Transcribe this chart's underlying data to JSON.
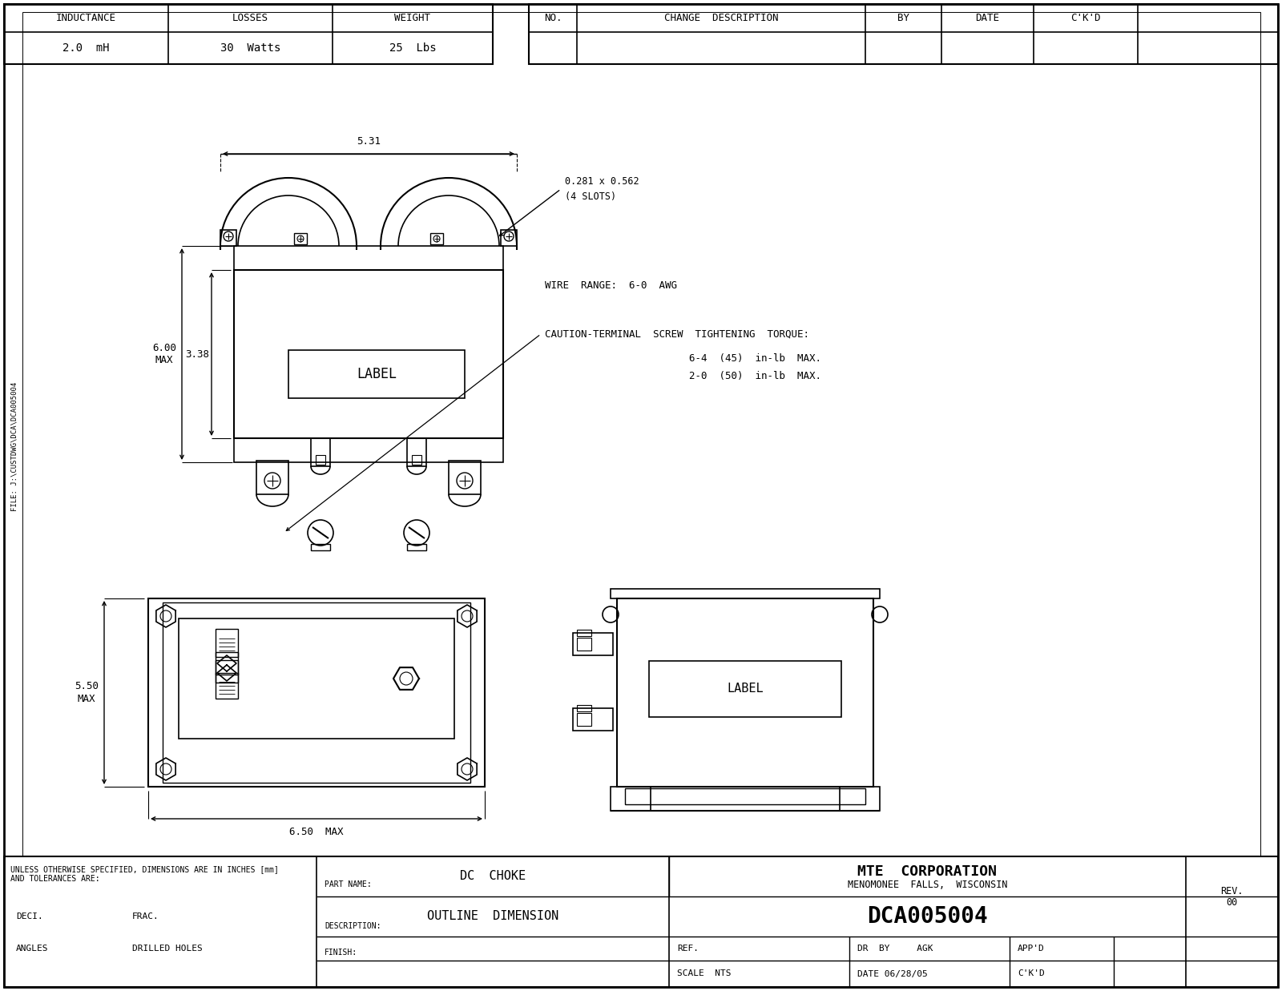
{
  "bg_color": "#ffffff",
  "line_color": "#000000",
  "header": {
    "inductance_label": "INDUCTANCE",
    "inductance_val": "2.0  mH",
    "losses_label": "LOSSES",
    "losses_val": "30  Watts",
    "weight_label": "WEIGHT",
    "weight_val": "25  Lbs",
    "no_label": "NO.",
    "change_label": "CHANGE  DESCRIPTION",
    "by_label": "BY",
    "date_label": "DATE",
    "ckd_label": "C'K'D"
  },
  "notes": {
    "wire_range": "WIRE  RANGE:  6-0  AWG",
    "caution_line1": "CAUTION-TERMINAL  SCREW  TIGHTENING  TORQUE:",
    "caution_line2": "6-4  (45)  in-lb  MAX.",
    "caution_line3": "2-0  (50)  in-lb  MAX."
  },
  "dims": {
    "front_width_label": "5.31",
    "front_height_label": "6.00\nMAX",
    "label_height": "3.38",
    "bottom_width_label": "6.50  MAX",
    "bottom_height_label": "5.50\nMAX"
  },
  "slot_label_line1": "0.281 x 0.562",
  "slot_label_line2": "(4 SLOTS)",
  "label_text": "LABEL",
  "title_block": {
    "unless_text1": "UNLESS OTHERWISE SPECIFIED, DIMENSIONS ARE IN INCHES [mm]",
    "unless_text2": "AND TOLERANCES ARE:",
    "deci_label": "DECI.",
    "frac_label": "FRAC.",
    "angles_label": "ANGLES",
    "drilled_label": "DRILLED HOLES",
    "part_name_label": "PART NAME:",
    "part_name_val": "DC  CHOKE",
    "desc_label": "DESCRIPTION:",
    "desc_val": "OUTLINE  DIMENSION",
    "finish_label": "FINISH:",
    "company": "MTE  CORPORATION",
    "city": "MENOMONEE  FALLS,  WISCONSIN",
    "part_num": "DCA005004",
    "rev_label": "REV.",
    "rev_val": "00",
    "scale_val": "NTS",
    "date_val": "DATE 06/28/05",
    "ckd_val": "C'K'D",
    "ref_val": "REF.",
    "dr_val": "DR  BY     AGK",
    "app_val": "APP'D"
  },
  "file_path": "FILE: J:\\CUSTDWG\\DCA\\DCA005004"
}
